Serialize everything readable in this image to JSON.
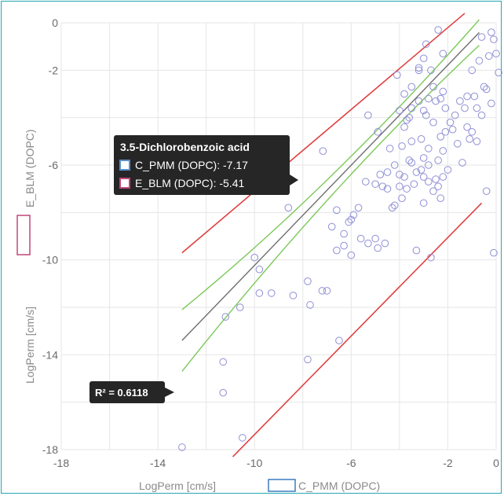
{
  "chart_data": {
    "type": "scatter",
    "xlabel": "LogPerm [cm/s]",
    "ylabel": "LogPerm [cm/s]",
    "xlim": [
      -18,
      0
    ],
    "ylim": [
      -18,
      0
    ],
    "x_ticks": [
      -18,
      -14,
      -10,
      -6,
      -2,
      0
    ],
    "y_ticks": [
      0,
      -2,
      -6,
      -10,
      -14,
      -18
    ],
    "grid": true,
    "x_series_name": "C_PMM (DOPC)",
    "y_series_name": "E_BLM (DOPC)",
    "colors": {
      "points": "#8f8fd6",
      "fit": "#6e6e6e",
      "confidence": "#7cc85a",
      "bounds": "#e04040",
      "tooltip_bg": "#262626",
      "x_legend": "#3a7bbf",
      "y_legend": "#c2477a"
    },
    "fit_line": {
      "slope": 1.056,
      "intercept": 0.33,
      "x_range": [
        -13,
        -0.7
      ]
    },
    "confidence_band": {
      "half_width_at_center": 0.35,
      "half_width_at_ends": 1.3,
      "center_x": -4.5
    },
    "bound_lines": [
      {
        "name": "upper",
        "points": [
          [
            -13,
            -9.7
          ],
          [
            -1.3,
            0.4
          ]
        ]
      },
      {
        "name": "lower",
        "points": [
          [
            -10.9,
            -18.3
          ],
          [
            -0.6,
            -7.6
          ]
        ]
      }
    ],
    "r2_label": "R² = 0.6118",
    "tooltip": {
      "title": "3.5-Dichlorobenzoic acid",
      "rows": [
        {
          "label": "C_PMM (DOPC): -7.17",
          "color": "#5b8fc9"
        },
        {
          "label": "E_BLM (DOPC): -5.41",
          "color": "#c2477a"
        }
      ]
    },
    "points": [
      [
        -13,
        -17.9
      ],
      [
        -11.2,
        -12.4
      ],
      [
        -11.3,
        -14.3
      ],
      [
        -11.3,
        -15.6
      ],
      [
        -10.6,
        -12
      ],
      [
        -10.5,
        -17.5
      ],
      [
        -10,
        -9.9
      ],
      [
        -9.8,
        -10.4
      ],
      [
        -9.8,
        -11.4
      ],
      [
        -9.3,
        -11.4
      ],
      [
        -8.6,
        -7.8
      ],
      [
        -8.4,
        -11.5
      ],
      [
        -7.8,
        -10.9
      ],
      [
        -7.8,
        -14.2
      ],
      [
        -7.7,
        -11.9
      ],
      [
        -7.2,
        -11.3
      ],
      [
        -7.0,
        -11.3
      ],
      [
        -7.17,
        -5.41
      ],
      [
        -6.8,
        -8.6
      ],
      [
        -6.6,
        -7.9
      ],
      [
        -6.6,
        -9.6
      ],
      [
        -6.5,
        -13.4
      ],
      [
        -6.3,
        -8.9
      ],
      [
        -6.3,
        -9.4
      ],
      [
        -6.1,
        -8.4
      ],
      [
        -6.0,
        -9.8
      ],
      [
        -6.0,
        -8.3
      ],
      [
        -5.9,
        -8.1
      ],
      [
        -5.7,
        -7.8
      ],
      [
        -5.6,
        -9.1
      ],
      [
        -5.4,
        -6.7
      ],
      [
        -5.3,
        -3.9
      ],
      [
        -5.3,
        -9.3
      ],
      [
        -5.0,
        -6.8
      ],
      [
        -5.0,
        -9.1
      ],
      [
        -4.9,
        -4.6
      ],
      [
        -4.9,
        -9.5
      ],
      [
        -4.7,
        -6.9
      ],
      [
        -4.6,
        -9.3
      ],
      [
        -4.5,
        -6.3
      ],
      [
        -4.5,
        -7.0
      ],
      [
        -4.4,
        -5.3
      ],
      [
        -4.3,
        -7.8
      ],
      [
        -4.2,
        -6.0
      ],
      [
        -4.2,
        -7.7
      ],
      [
        -4.1,
        -2.2
      ],
      [
        -4.0,
        -3.7
      ],
      [
        -4.0,
        -6.4
      ],
      [
        -4.0,
        -6.9
      ],
      [
        -3.9,
        -5.2
      ],
      [
        -3.8,
        -3.0
      ],
      [
        -3.8,
        -4.4
      ],
      [
        -3.8,
        -6.5
      ],
      [
        -3.7,
        -4.1
      ],
      [
        -3.7,
        -7.0
      ],
      [
        -3.6,
        -5.8
      ],
      [
        -3.5,
        -2.7
      ],
      [
        -3.5,
        -3.6
      ],
      [
        -3.5,
        -5.0
      ],
      [
        -3.5,
        -5.9
      ],
      [
        -3.4,
        -6.8
      ],
      [
        -3.3,
        -9.6
      ],
      [
        -3.3,
        -6.3
      ],
      [
        -3.2,
        -1.9
      ],
      [
        -3.2,
        -2.0
      ],
      [
        -3.2,
        -3.3
      ],
      [
        -3.1,
        -4.9
      ],
      [
        -3.1,
        -6.2
      ],
      [
        -3.0,
        -1.5
      ],
      [
        -3.0,
        -3.7
      ],
      [
        -3.0,
        -5.7
      ],
      [
        -3.0,
        -6.5
      ],
      [
        -3.0,
        -7.6
      ],
      [
        -2.9,
        -0.9
      ],
      [
        -2.9,
        -3.9
      ],
      [
        -2.8,
        -3.2
      ],
      [
        -2.8,
        -5.3
      ],
      [
        -2.8,
        -6.0
      ],
      [
        -2.8,
        -6.7
      ],
      [
        -2.7,
        -9.9
      ],
      [
        -2.6,
        -2.7
      ],
      [
        -2.6,
        -4.2
      ],
      [
        -2.6,
        -7.1
      ],
      [
        -2.5,
        -3.3
      ],
      [
        -2.5,
        -6.6
      ],
      [
        -2.4,
        -0.3
      ],
      [
        -2.4,
        -5.8
      ],
      [
        -2.4,
        -6.9
      ],
      [
        -2.3,
        -3.2
      ],
      [
        -2.3,
        -4.8
      ],
      [
        -2.3,
        -7.4
      ],
      [
        -2.2,
        -1.3
      ],
      [
        -2.2,
        -2.9
      ],
      [
        -2.2,
        -5.4
      ],
      [
        -2.2,
        -6.5
      ],
      [
        -2.1,
        -3.6
      ],
      [
        -2.1,
        -4.6
      ],
      [
        -2.0,
        -6.2
      ],
      [
        -1.9,
        -4.2
      ],
      [
        -1.8,
        -4.5
      ],
      [
        -1.7,
        -3.9
      ],
      [
        -1.6,
        -5.1
      ],
      [
        -1.5,
        -3.3
      ],
      [
        -1.4,
        -5.9
      ],
      [
        -1.3,
        -3.6
      ],
      [
        -1.2,
        -3.1
      ],
      [
        -1.1,
        -4.9
      ],
      [
        -1.0,
        -2.0
      ],
      [
        -1.0,
        -4.6
      ],
      [
        -0.9,
        -3.1
      ],
      [
        -0.8,
        -3.6
      ],
      [
        -0.8,
        -5.0
      ],
      [
        -0.7,
        -1.6
      ],
      [
        -0.6,
        -0.6
      ],
      [
        -0.6,
        -3.9
      ],
      [
        -0.5,
        -2.7
      ],
      [
        -0.4,
        -7.1
      ],
      [
        -0.4,
        -2.8
      ],
      [
        -0.3,
        -1.4
      ],
      [
        -0.2,
        -0.4
      ],
      [
        -0.2,
        -3.4
      ],
      [
        -0.1,
        -0.7
      ],
      [
        -0.1,
        -9.7
      ],
      [
        0,
        -1.3
      ],
      [
        0.1,
        -2.1
      ],
      [
        0.6,
        -2.8
      ],
      [
        -1.2,
        -4.4
      ],
      [
        -3.6,
        -4.0
      ],
      [
        -2.7,
        -2.0
      ],
      [
        -3.9,
        -7.4
      ],
      [
        -4.8,
        -6.4
      ]
    ]
  }
}
